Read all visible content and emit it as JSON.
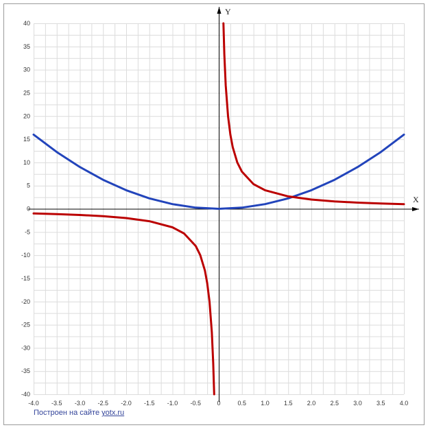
{
  "chart_data": {
    "type": "line",
    "title": "",
    "xlabel": "X",
    "ylabel": "Y",
    "xlim": [
      -4.0,
      4.0
    ],
    "ylim": [
      -40,
      40
    ],
    "grid": true,
    "x_ticks": [
      "-4.0",
      "-3.5",
      "-3.0",
      "-2.5",
      "-2.0",
      "-1.5",
      "-1.0",
      "-0.5",
      "0",
      "0.5",
      "1.0",
      "1.5",
      "2.0",
      "2.5",
      "3.0",
      "3.5",
      "4.0"
    ],
    "y_ticks": [
      "40",
      "35",
      "30",
      "25",
      "20",
      "15",
      "10",
      "5",
      "0",
      "-5",
      "-10",
      "-15",
      "-20",
      "-25",
      "-30",
      "-35",
      "-40"
    ],
    "series": [
      {
        "color": "#2244bb",
        "x": [
          -4.0,
          -3.5,
          -3.0,
          -2.5,
          -2.0,
          -1.5,
          -1.0,
          -0.5,
          0,
          0.5,
          1.0,
          1.5,
          2.0,
          2.5,
          3.0,
          3.5,
          4.0
        ],
        "y": [
          16,
          12.25,
          9,
          6.25,
          4,
          2.25,
          1,
          0.25,
          0,
          0.25,
          1,
          2.25,
          4,
          6.25,
          9,
          12.25,
          16
        ]
      },
      {
        "color": "#bb0000",
        "x": [
          -4.0,
          -3.5,
          -3.0,
          -2.5,
          -2.0,
          -1.5,
          -1.0,
          -0.75,
          -0.5,
          -0.4,
          -0.3,
          -0.25,
          -0.2,
          -0.15,
          -0.12,
          -0.1
        ],
        "y": [
          -1,
          -1.14,
          -1.33,
          -1.6,
          -2,
          -2.67,
          -4,
          -5.33,
          -8,
          -10,
          -13.33,
          -16,
          -20,
          -26.67,
          -33.33,
          -40
        ]
      },
      {
        "color": "#bb0000",
        "x": [
          0.1,
          0.12,
          0.15,
          0.2,
          0.25,
          0.3,
          0.4,
          0.5,
          0.75,
          1.0,
          1.5,
          2.0,
          2.5,
          3.0,
          3.5,
          4.0
        ],
        "y": [
          40,
          33.33,
          26.67,
          20,
          16,
          13.33,
          10,
          8,
          5.33,
          4,
          2.67,
          2,
          1.6,
          1.33,
          1.14,
          1
        ]
      }
    ]
  },
  "credit": {
    "text": "Построен на сайте ",
    "link": "yotx.ru"
  }
}
